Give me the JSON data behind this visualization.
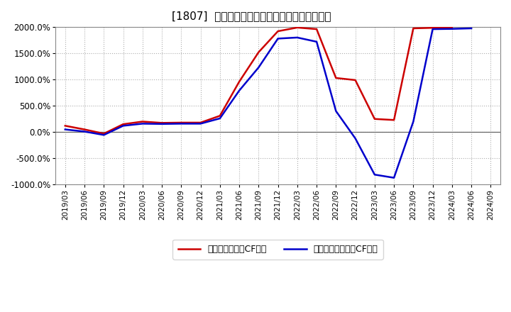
{
  "title": "[1807]  有利子負債キャッシュフロー比率の推移",
  "legend_red": "有利子負債営業CF比率",
  "legend_blue": "有利子負債フリーCF比率",
  "background_color": "#ffffff",
  "plot_bg_color": "#ffffff",
  "grid_color": "#999999",
  "ylim": [
    -1000,
    2000
  ],
  "yticks": [
    -1000,
    -500,
    0,
    500,
    1000,
    1500,
    2000
  ],
  "dates": [
    "2019/03",
    "2019/06",
    "2019/09",
    "2019/12",
    "2020/03",
    "2020/06",
    "2020/09",
    "2020/12",
    "2021/03",
    "2021/06",
    "2021/09",
    "2021/12",
    "2022/03",
    "2022/06",
    "2022/09",
    "2022/12",
    "2023/03",
    "2023/06",
    "2023/09",
    "2023/12",
    "2024/03",
    "2024/06",
    "2024/09"
  ],
  "red_values": [
    120,
    50,
    -30,
    150,
    200,
    175,
    180,
    180,
    310,
    960,
    1520,
    1920,
    1990,
    1960,
    1030,
    990,
    250,
    230,
    1975,
    1985,
    1990,
    null,
    null
  ],
  "blue_values": [
    50,
    10,
    -55,
    120,
    160,
    155,
    160,
    160,
    260,
    790,
    1230,
    1780,
    1800,
    1720,
    400,
    -120,
    -810,
    -870,
    200,
    1960,
    1965,
    1975,
    null
  ]
}
